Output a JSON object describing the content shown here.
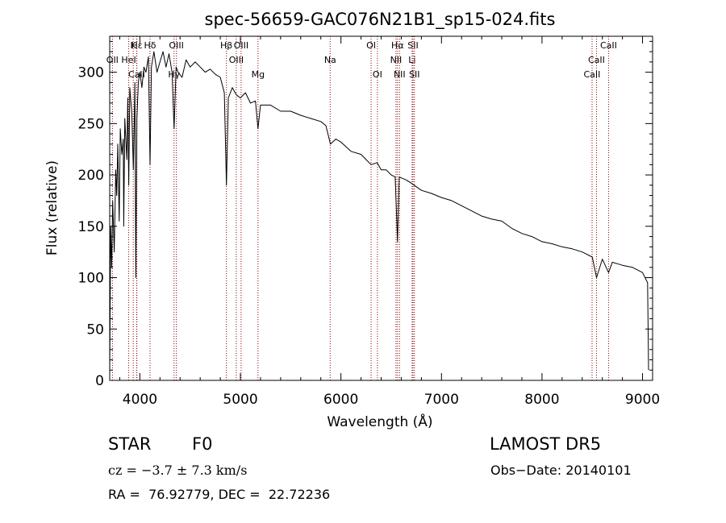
{
  "chart_data": {
    "type": "line",
    "title": "spec-56659-GAC076N21B1_sp15-024.fits",
    "xlabel": "Wavelength (Å)",
    "ylabel": "Flux (relative)",
    "xlim": [
      3700,
      9100
    ],
    "ylim": [
      0,
      335
    ],
    "xticks": [
      4000,
      5000,
      6000,
      7000,
      8000,
      9000
    ],
    "yticks": [
      0,
      50,
      100,
      150,
      200,
      250,
      300
    ],
    "grid": false,
    "line_color": "#000000",
    "marker_color": "#8b0000",
    "series": [
      {
        "points": [
          [
            3700,
            5
          ],
          [
            3710,
            150
          ],
          [
            3720,
            110
          ],
          [
            3730,
            175
          ],
          [
            3745,
            125
          ],
          [
            3760,
            205
          ],
          [
            3770,
            180
          ],
          [
            3780,
            230
          ],
          [
            3795,
            155
          ],
          [
            3805,
            245
          ],
          [
            3820,
            220
          ],
          [
            3835,
            235
          ],
          [
            3840,
            150
          ],
          [
            3850,
            255
          ],
          [
            3870,
            215
          ],
          [
            3880,
            275
          ],
          [
            3889,
            190
          ],
          [
            3900,
            285
          ],
          [
            3920,
            260
          ],
          [
            3935,
            205
          ],
          [
            3950,
            290
          ],
          [
            3960,
            100
          ],
          [
            3970,
            255
          ],
          [
            3985,
            290
          ],
          [
            4000,
            300
          ],
          [
            4020,
            285
          ],
          [
            4040,
            305
          ],
          [
            4060,
            300
          ],
          [
            4085,
            315
          ],
          [
            4101,
            210
          ],
          [
            4115,
            305
          ],
          [
            4140,
            320
          ],
          [
            4170,
            300
          ],
          [
            4200,
            310
          ],
          [
            4230,
            320
          ],
          [
            4260,
            305
          ],
          [
            4290,
            318
          ],
          [
            4320,
            300
          ],
          [
            4340,
            245
          ],
          [
            4360,
            305
          ],
          [
            4380,
            300
          ],
          [
            4420,
            295
          ],
          [
            4460,
            312
          ],
          [
            4500,
            305
          ],
          [
            4550,
            310
          ],
          [
            4600,
            305
          ],
          [
            4650,
            300
          ],
          [
            4700,
            303
          ],
          [
            4750,
            298
          ],
          [
            4800,
            295
          ],
          [
            4840,
            280
          ],
          [
            4861,
            190
          ],
          [
            4880,
            275
          ],
          [
            4920,
            285
          ],
          [
            4960,
            278
          ],
          [
            5000,
            275
          ],
          [
            5050,
            280
          ],
          [
            5100,
            270
          ],
          [
            5150,
            272
          ],
          [
            5175,
            245
          ],
          [
            5200,
            268
          ],
          [
            5300,
            268
          ],
          [
            5400,
            262
          ],
          [
            5500,
            262
          ],
          [
            5600,
            258
          ],
          [
            5700,
            255
          ],
          [
            5800,
            252
          ],
          [
            5850,
            248
          ],
          [
            5895,
            230
          ],
          [
            5950,
            235
          ],
          [
            6000,
            232
          ],
          [
            6100,
            223
          ],
          [
            6200,
            220
          ],
          [
            6250,
            215
          ],
          [
            6300,
            210
          ],
          [
            6360,
            212
          ],
          [
            6400,
            205
          ],
          [
            6450,
            205
          ],
          [
            6500,
            200
          ],
          [
            6540,
            198
          ],
          [
            6563,
            135
          ],
          [
            6580,
            198
          ],
          [
            6650,
            195
          ],
          [
            6700,
            192
          ],
          [
            6800,
            185
          ],
          [
            6900,
            182
          ],
          [
            7000,
            178
          ],
          [
            7100,
            175
          ],
          [
            7200,
            170
          ],
          [
            7300,
            165
          ],
          [
            7400,
            160
          ],
          [
            7500,
            157
          ],
          [
            7600,
            155
          ],
          [
            7700,
            148
          ],
          [
            7800,
            143
          ],
          [
            7900,
            140
          ],
          [
            8000,
            135
          ],
          [
            8100,
            133
          ],
          [
            8200,
            130
          ],
          [
            8300,
            128
          ],
          [
            8400,
            125
          ],
          [
            8500,
            120
          ],
          [
            8542,
            100
          ],
          [
            8600,
            118
          ],
          [
            8662,
            105
          ],
          [
            8700,
            115
          ],
          [
            8800,
            112
          ],
          [
            8900,
            110
          ],
          [
            9000,
            105
          ],
          [
            9050,
            95
          ],
          [
            9060,
            10
          ]
        ]
      }
    ],
    "line_markers": [
      {
        "label": "Hβ",
        "x": 4861,
        "row": 0
      },
      {
        "label": "Hδ",
        "x": 4101,
        "row": 0
      },
      {
        "label": "K",
        "x": 3934,
        "row": 0
      },
      {
        "label": "Hε",
        "x": 3970,
        "row": 0
      },
      {
        "label": "OIII",
        "x": 4363,
        "row": 0
      },
      {
        "label": "OIII",
        "x": 5007,
        "row": 0
      },
      {
        "label": "OI",
        "x": 6300,
        "row": 0
      },
      {
        "label": "Hα",
        "x": 6563,
        "row": 0
      },
      {
        "label": "SII",
        "x": 6717,
        "row": 0
      },
      {
        "label": "CaII",
        "x": 8662,
        "row": 0
      },
      {
        "label": "OII",
        "x": 3727,
        "row": 1
      },
      {
        "label": "HeI",
        "x": 3889,
        "row": 1
      },
      {
        "label": "OIII",
        "x": 4959,
        "row": 1
      },
      {
        "label": "Na",
        "x": 5893,
        "row": 1
      },
      {
        "label": "NII",
        "x": 6548,
        "row": 1
      },
      {
        "label": "Li",
        "x": 6708,
        "row": 1
      },
      {
        "label": "CaII",
        "x": 8542,
        "row": 1
      },
      {
        "label": "CaII",
        "x": 3968,
        "row": 2
      },
      {
        "label": "Hγ",
        "x": 4340,
        "row": 2
      },
      {
        "label": "Mg",
        "x": 5175,
        "row": 2
      },
      {
        "label": "OI",
        "x": 6363,
        "row": 2
      },
      {
        "label": "NII",
        "x": 6583,
        "row": 2
      },
      {
        "label": "SII",
        "x": 6731,
        "row": 2
      },
      {
        "label": "CaII",
        "x": 8498,
        "row": 2
      }
    ]
  },
  "info": {
    "class": "STAR",
    "subclass": "F0",
    "survey": "LAMOST DR5",
    "cz": "cz = −3.7 ± 7.3 km/s",
    "obs_date": "Obs−Date: 20140101",
    "coords": "RA =  76.92779, DEC =  22.72236"
  }
}
